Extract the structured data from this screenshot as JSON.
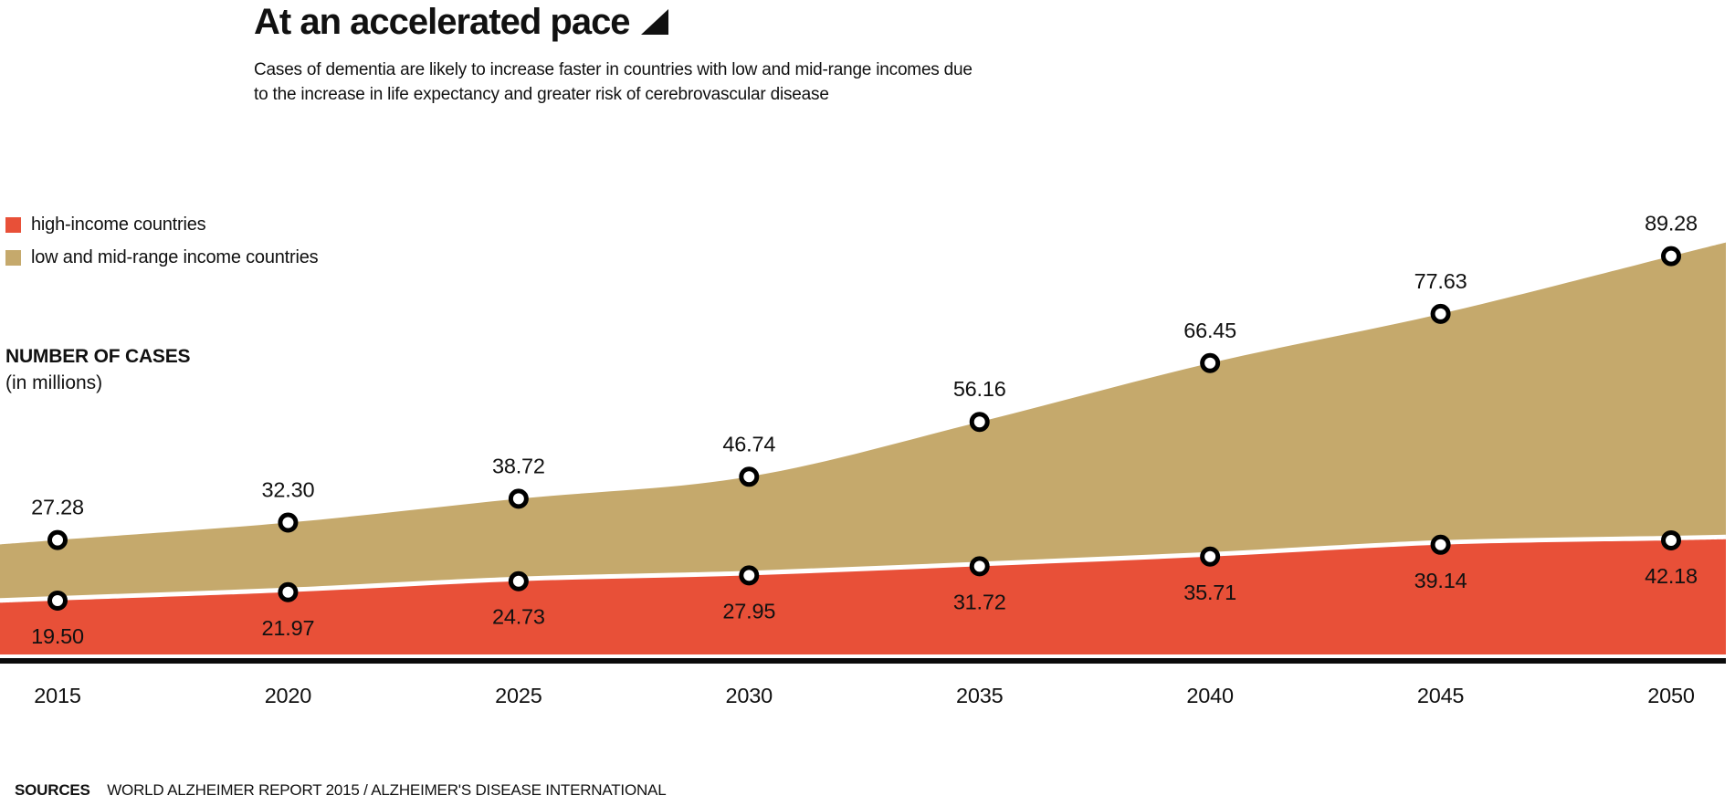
{
  "header": {
    "title": "At an accelerated pace",
    "title_icon": "filled-lower-right-triangle",
    "subtitle_line1": "Cases of dementia are likely to increase faster in countries with low and mid-range incomes due",
    "subtitle_line2": "to the increase in life expectancy and greater risk of cerebrovascular disease"
  },
  "axis_label": {
    "title": "NUMBER OF CASES",
    "unit": "(in millions)"
  },
  "sources": {
    "label": "SOURCES",
    "text": "WORLD ALZHEIMER REPORT 2015 / ALZHEIMER'S DISEASE INTERNATIONAL"
  },
  "chart_data": {
    "type": "area",
    "title": "At an accelerated pace",
    "xlabel": "",
    "ylabel": "NUMBER OF CASES (in millions)",
    "grid": false,
    "legend_position": "top-left",
    "value_labels": "all points, two decimals",
    "marker_style": "white circle with black ring",
    "x": [
      2015,
      2020,
      2025,
      2030,
      2035,
      2040,
      2045,
      2050
    ],
    "series": [
      {
        "name": "high-income countries",
        "color": "#E85038",
        "values": [
          19.5,
          21.97,
          24.73,
          27.95,
          31.72,
          35.71,
          39.14,
          42.18
        ]
      },
      {
        "name": "low and mid-range income countries",
        "color": "#C5A96C",
        "values": [
          27.28,
          32.3,
          38.72,
          46.74,
          56.16,
          66.45,
          77.63,
          89.28
        ]
      }
    ]
  }
}
